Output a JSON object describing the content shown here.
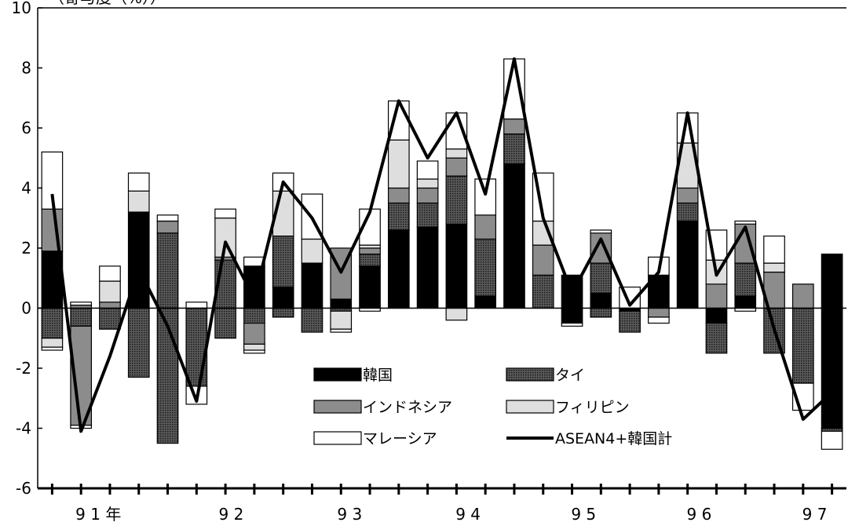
{
  "chart_data": {
    "type": "bar",
    "subtype": "stacked-with-line",
    "unit_label": "（寄与度（%））",
    "ylim": [
      -6,
      10
    ],
    "yticks": [
      -6,
      -4,
      -2,
      0,
      2,
      4,
      6,
      8,
      10
    ],
    "ytick_labels": [
      "-6",
      "-4",
      "-2",
      "0",
      "2",
      "4",
      "6",
      "8",
      "10"
    ],
    "grid": false,
    "legend_placement": "bottom-center",
    "year_labels": [
      {
        "label": "9 1 年",
        "after_index": 1.6
      },
      {
        "label": "9 2",
        "after_index": 6.2
      },
      {
        "label": "9 3",
        "after_index": 10.3
      },
      {
        "label": "9 4",
        "after_index": 14.4
      },
      {
        "label": "9 5",
        "after_index": 18.4
      },
      {
        "label": "9 6",
        "after_index": 22.4
      },
      {
        "label": "9 7",
        "after_index": 26.4
      }
    ],
    "colors": {
      "korea": "#000000",
      "thailand": "#333333",
      "indonesia": "#8c8c8c",
      "philippines": "#dedede",
      "malaysia": "#ffffff",
      "line": "#000000"
    },
    "series": [
      {
        "key": "korea",
        "name": "韓国",
        "values": [
          1.9,
          -0.5,
          -1.8,
          3.2,
          -4.5,
          -2.6,
          -1.0,
          -0.5,
          0.7,
          1.5,
          0.3,
          1.4,
          2.6,
          2.7,
          2.7,
          0.4,
          4.8,
          0.0,
          -0.5,
          0.5,
          0.0,
          1.1,
          2.9,
          -0.5,
          0.4,
          -1.4,
          -1.2,
          1.8
        ]
      },
      {
        "key": "thailand",
        "name": "タイ",
        "values": [
          -1.0,
          -0.6,
          -0.7,
          -2.3,
          2.5,
          -0.2,
          1.6,
          1.4,
          1.7,
          -0.8,
          -0.1,
          0.4,
          0.9,
          0.8,
          1.7,
          1.9,
          1.0,
          1.1,
          1.1,
          1.0,
          -0.8,
          0.0,
          0.6,
          -1.0,
          1.1,
          -1.5,
          -2.5,
          -2.2
        ]
      },
      {
        "key": "indonesia",
        "name": "インドネシア",
        "values": [
          1.4,
          -3.3,
          0.2,
          0.0,
          0.4,
          0.0,
          0.1,
          -0.7,
          0.0,
          0.0,
          1.7,
          0.2,
          0.5,
          0.5,
          0.6,
          0.8,
          0.5,
          1.0,
          0.0,
          1.0,
          0.0,
          -0.3,
          0.5,
          0.8,
          1.3,
          1.2,
          0.8,
          -1.9
        ]
      },
      {
        "key": "philippines",
        "name": "フィリピン",
        "values": [
          0.0,
          0.0,
          0.7,
          0.7,
          0.0,
          0.0,
          1.3,
          -0.2,
          1.5,
          0.8,
          -0.6,
          0.0,
          1.6,
          0.3,
          0.3,
          0.0,
          0.0,
          0.8,
          0.0,
          0.0,
          0.0,
          0.0,
          1.5,
          0.8,
          0.0,
          0.3,
          0.0,
          -0.1
        ]
      },
      {
        "key": "malaysia",
        "name": "マレーシア",
        "values": [
          1.9,
          0.1,
          0.5,
          0.6,
          0.2,
          0.2,
          0.3,
          0.3,
          0.6,
          1.5,
          0.1,
          1.2,
          1.3,
          0.6,
          1.2,
          1.2,
          2.0,
          1.6,
          0.0,
          0.0,
          0.7,
          0.6,
          1.0,
          1.0,
          0.0,
          0.9,
          0.0,
          0.0
        ]
      },
      {
        "key": "negatives_extra",
        "name": "",
        "values": []
      }
    ],
    "negative_stack": {
      "korea": [
        0,
        0,
        0,
        0,
        0,
        0,
        0,
        0,
        0,
        0,
        0,
        0,
        0,
        0,
        0,
        0,
        0,
        0,
        -0.5,
        0,
        -0.1,
        0,
        0,
        -0.5,
        0,
        0,
        0,
        -4.0
      ],
      "thailand": [
        -1.0,
        -0.6,
        -0.7,
        -2.3,
        -4.5,
        -2.6,
        -1.0,
        -0.5,
        -0.3,
        -0.8,
        -0.1,
        0,
        0,
        0,
        0,
        0,
        0,
        0,
        0,
        -0.3,
        -0.7,
        0,
        0,
        -1.0,
        0,
        -1.5,
        -2.5,
        -0.1
      ],
      "indonesia": [
        0,
        -3.3,
        0,
        0,
        0,
        0,
        0,
        -0.7,
        0,
        0,
        0,
        0,
        0,
        0,
        0,
        0,
        0,
        0,
        0,
        0,
        0,
        -0.3,
        0,
        0,
        0,
        0,
        0,
        0
      ],
      "philippines": [
        -0.3,
        0,
        0,
        0,
        0,
        0,
        0,
        -0.2,
        0,
        0,
        -0.6,
        0,
        0,
        0,
        -0.4,
        0,
        0,
        0,
        0,
        0,
        0,
        0,
        0,
        0,
        0,
        0,
        0,
        0
      ],
      "malaysia": [
        -0.1,
        -0.1,
        0,
        0,
        0,
        -0.6,
        0,
        -0.1,
        0,
        0,
        -0.1,
        -0.1,
        0,
        0,
        0,
        0,
        0,
        0,
        -0.1,
        0,
        0,
        -0.2,
        0,
        0,
        -0.1,
        0,
        -0.9,
        -0.6
      ]
    },
    "positive_stack": {
      "korea": [
        1.9,
        0,
        0,
        3.2,
        0,
        0,
        0,
        1.4,
        0.7,
        1.5,
        0.3,
        1.4,
        2.6,
        2.7,
        2.8,
        0.4,
        4.8,
        0,
        1.1,
        0.5,
        0,
        1.1,
        2.9,
        0,
        0.4,
        0,
        0,
        1.8
      ],
      "thailand": [
        0,
        0,
        0,
        0,
        2.5,
        0,
        1.6,
        0,
        1.7,
        0,
        0,
        0.4,
        0.9,
        0.8,
        1.6,
        1.9,
        1.0,
        1.1,
        0,
        1.0,
        0,
        0,
        0.6,
        0,
        1.1,
        0,
        0,
        0
      ],
      "indonesia": [
        1.4,
        0.1,
        0.2,
        0,
        0.4,
        0,
        0.1,
        0,
        0,
        0,
        1.7,
        0.2,
        0.5,
        0.5,
        0.6,
        0.8,
        0.5,
        1.0,
        0,
        1.0,
        0,
        0,
        0.5,
        0.8,
        1.3,
        1.2,
        0.8,
        0
      ],
      "philippines": [
        0,
        0,
        0.7,
        0.7,
        0,
        0,
        1.3,
        0,
        1.5,
        0.8,
        0,
        0.1,
        1.6,
        0.3,
        0.3,
        0,
        0,
        0.8,
        0,
        0,
        0,
        0,
        1.5,
        0.8,
        0,
        0.3,
        0,
        0
      ],
      "malaysia": [
        1.9,
        0.1,
        0.5,
        0.6,
        0.2,
        0.2,
        0.3,
        0.3,
        0.6,
        1.5,
        0,
        1.2,
        1.3,
        0.6,
        1.2,
        1.2,
        2.0,
        1.6,
        0,
        0.1,
        0.7,
        0.6,
        1.0,
        1.0,
        0.1,
        0.9,
        0,
        0
      ]
    },
    "total_line": {
      "name": "ASEAN4+韓国計",
      "values": [
        3.8,
        -4.1,
        -1.6,
        1.3,
        -0.6,
        -3.1,
        2.2,
        0.3,
        4.2,
        3.0,
        1.2,
        3.2,
        6.9,
        5.0,
        6.5,
        3.8,
        8.3,
        3.0,
        0.5,
        2.3,
        0.1,
        1.2,
        6.5,
        1.1,
        2.7,
        -0.7,
        -3.7,
        -2.8
      ]
    },
    "legend": [
      {
        "key": "korea",
        "label": "韓国"
      },
      {
        "key": "thailand",
        "label": "タイ"
      },
      {
        "key": "indonesia",
        "label": "インドネシア"
      },
      {
        "key": "philippines",
        "label": "フィリピン"
      },
      {
        "key": "malaysia",
        "label": "マレーシア"
      },
      {
        "key": "line",
        "label": "ASEAN4+韓国計"
      }
    ]
  }
}
